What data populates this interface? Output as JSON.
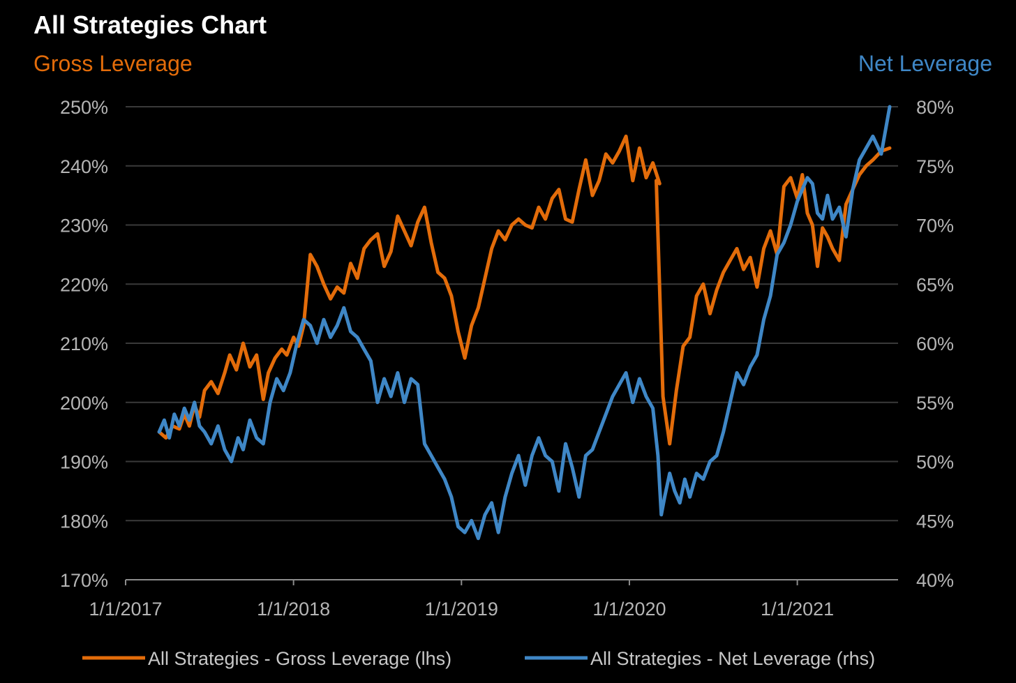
{
  "chart_data": {
    "type": "line",
    "title": "All Strategies Chart",
    "left_axis_title": "Gross Leverage",
    "right_axis_title": "Net Leverage",
    "x_ticks": [
      "1/1/2017",
      "1/1/2018",
      "1/1/2019",
      "1/1/2020",
      "1/1/2021"
    ],
    "x_range": [
      2017.0,
      2021.6
    ],
    "y_left": {
      "range": [
        170,
        250
      ],
      "ticks": [
        "170%",
        "180%",
        "190%",
        "200%",
        "210%",
        "220%",
        "230%",
        "240%",
        "250%"
      ]
    },
    "y_right": {
      "range": [
        40,
        80
      ],
      "ticks": [
        "40%",
        "45%",
        "50%",
        "55%",
        "60%",
        "65%",
        "70%",
        "75%",
        "80%"
      ]
    },
    "gridlines": true,
    "legend_position": "bottom",
    "colors": {
      "gross": "#e36c0a",
      "net": "#3f87c6",
      "background": "#000000",
      "grid": "#3a3a3a"
    },
    "series": [
      {
        "name": "All Strategies - Gross Leverage (lhs)",
        "axis": "left",
        "points": [
          [
            2017.2,
            195.0
          ],
          [
            2017.24,
            194.0
          ],
          [
            2017.28,
            196.0
          ],
          [
            2017.32,
            195.5
          ],
          [
            2017.35,
            198.0
          ],
          [
            2017.38,
            196.0
          ],
          [
            2017.41,
            199.5
          ],
          [
            2017.44,
            197.5
          ],
          [
            2017.47,
            202.0
          ],
          [
            2017.51,
            203.5
          ],
          [
            2017.55,
            201.5
          ],
          [
            2017.59,
            205.0
          ],
          [
            2017.62,
            208.0
          ],
          [
            2017.66,
            205.5
          ],
          [
            2017.7,
            210.0
          ],
          [
            2017.74,
            206.0
          ],
          [
            2017.78,
            208.0
          ],
          [
            2017.82,
            200.5
          ],
          [
            2017.85,
            205.0
          ],
          [
            2017.89,
            207.5
          ],
          [
            2017.93,
            209.0
          ],
          [
            2017.96,
            208.0
          ],
          [
            2018.0,
            211.0
          ],
          [
            2018.03,
            209.5
          ],
          [
            2018.06,
            213.0
          ],
          [
            2018.1,
            225.0
          ],
          [
            2018.14,
            223.0
          ],
          [
            2018.18,
            220.0
          ],
          [
            2018.22,
            217.5
          ],
          [
            2018.26,
            219.5
          ],
          [
            2018.3,
            218.5
          ],
          [
            2018.34,
            223.5
          ],
          [
            2018.38,
            221.0
          ],
          [
            2018.42,
            226.0
          ],
          [
            2018.46,
            227.5
          ],
          [
            2018.5,
            228.5
          ],
          [
            2018.54,
            223.0
          ],
          [
            2018.58,
            225.5
          ],
          [
            2018.62,
            231.5
          ],
          [
            2018.66,
            229.0
          ],
          [
            2018.7,
            226.5
          ],
          [
            2018.74,
            230.5
          ],
          [
            2018.78,
            233.0
          ],
          [
            2018.82,
            227.0
          ],
          [
            2018.86,
            222.0
          ],
          [
            2018.9,
            221.0
          ],
          [
            2018.94,
            218.0
          ],
          [
            2018.98,
            212.0
          ],
          [
            2019.02,
            207.5
          ],
          [
            2019.06,
            213.0
          ],
          [
            2019.1,
            216.0
          ],
          [
            2019.14,
            221.0
          ],
          [
            2019.18,
            226.0
          ],
          [
            2019.22,
            229.0
          ],
          [
            2019.26,
            227.5
          ],
          [
            2019.3,
            230.0
          ],
          [
            2019.34,
            231.0
          ],
          [
            2019.38,
            230.0
          ],
          [
            2019.42,
            229.5
          ],
          [
            2019.46,
            233.0
          ],
          [
            2019.5,
            231.0
          ],
          [
            2019.54,
            234.5
          ],
          [
            2019.58,
            236.0
          ],
          [
            2019.62,
            231.0
          ],
          [
            2019.66,
            230.5
          ],
          [
            2019.7,
            236.0
          ],
          [
            2019.74,
            241.0
          ],
          [
            2019.78,
            235.0
          ],
          [
            2019.82,
            237.5
          ],
          [
            2019.86,
            242.0
          ],
          [
            2019.9,
            240.5
          ],
          [
            2019.94,
            242.5
          ],
          [
            2019.98,
            245.0
          ],
          [
            2020.02,
            237.5
          ],
          [
            2020.06,
            243.0
          ],
          [
            2020.1,
            238.0
          ],
          [
            2020.14,
            240.5
          ],
          [
            2020.18,
            237.0
          ],
          [
            2020.16,
            237.5
          ],
          [
            2020.2,
            201.0
          ],
          [
            2020.24,
            193.0
          ],
          [
            2020.28,
            202.0
          ],
          [
            2020.32,
            209.5
          ],
          [
            2020.36,
            211.0
          ],
          [
            2020.4,
            218.0
          ],
          [
            2020.44,
            220.0
          ],
          [
            2020.48,
            215.0
          ],
          [
            2020.52,
            219.0
          ],
          [
            2020.56,
            222.0
          ],
          [
            2020.6,
            224.0
          ],
          [
            2020.64,
            226.0
          ],
          [
            2020.68,
            222.5
          ],
          [
            2020.72,
            224.5
          ],
          [
            2020.76,
            219.5
          ],
          [
            2020.8,
            226.0
          ],
          [
            2020.84,
            229.0
          ],
          [
            2020.88,
            225.0
          ],
          [
            2020.92,
            236.5
          ],
          [
            2020.96,
            238.0
          ],
          [
            2021.0,
            234.5
          ],
          [
            2021.03,
            238.5
          ],
          [
            2021.06,
            232.0
          ],
          [
            2021.09,
            230.0
          ],
          [
            2021.12,
            223.0
          ],
          [
            2021.15,
            229.5
          ],
          [
            2021.18,
            228.0
          ],
          [
            2021.21,
            226.0
          ],
          [
            2021.25,
            224.0
          ],
          [
            2021.29,
            233.5
          ],
          [
            2021.33,
            236.0
          ],
          [
            2021.37,
            238.5
          ],
          [
            2021.41,
            240.0
          ],
          [
            2021.45,
            241.0
          ],
          [
            2021.5,
            242.5
          ],
          [
            2021.55,
            243.0
          ]
        ]
      },
      {
        "name": "All Strategies - Net Leverage (rhs)",
        "axis": "right",
        "points": [
          [
            2017.2,
            52.5
          ],
          [
            2017.23,
            53.5
          ],
          [
            2017.26,
            52.0
          ],
          [
            2017.29,
            54.0
          ],
          [
            2017.32,
            53.0
          ],
          [
            2017.35,
            54.5
          ],
          [
            2017.38,
            53.5
          ],
          [
            2017.41,
            55.0
          ],
          [
            2017.44,
            53.0
          ],
          [
            2017.47,
            52.5
          ],
          [
            2017.51,
            51.5
          ],
          [
            2017.55,
            53.0
          ],
          [
            2017.59,
            51.0
          ],
          [
            2017.63,
            50.0
          ],
          [
            2017.67,
            52.0
          ],
          [
            2017.7,
            51.0
          ],
          [
            2017.74,
            53.5
          ],
          [
            2017.78,
            52.0
          ],
          [
            2017.82,
            51.5
          ],
          [
            2017.86,
            55.0
          ],
          [
            2017.9,
            57.0
          ],
          [
            2017.94,
            56.0
          ],
          [
            2017.98,
            57.5
          ],
          [
            2018.02,
            60.0
          ],
          [
            2018.06,
            62.0
          ],
          [
            2018.1,
            61.5
          ],
          [
            2018.14,
            60.0
          ],
          [
            2018.18,
            62.0
          ],
          [
            2018.22,
            60.5
          ],
          [
            2018.26,
            61.5
          ],
          [
            2018.3,
            63.0
          ],
          [
            2018.34,
            61.0
          ],
          [
            2018.38,
            60.5
          ],
          [
            2018.42,
            59.5
          ],
          [
            2018.46,
            58.5
          ],
          [
            2018.5,
            55.0
          ],
          [
            2018.54,
            57.0
          ],
          [
            2018.58,
            55.5
          ],
          [
            2018.62,
            57.5
          ],
          [
            2018.66,
            55.0
          ],
          [
            2018.7,
            57.0
          ],
          [
            2018.74,
            56.5
          ],
          [
            2018.78,
            51.5
          ],
          [
            2018.82,
            50.5
          ],
          [
            2018.86,
            49.5
          ],
          [
            2018.9,
            48.5
          ],
          [
            2018.94,
            47.0
          ],
          [
            2018.98,
            44.5
          ],
          [
            2019.02,
            44.0
          ],
          [
            2019.06,
            45.0
          ],
          [
            2019.1,
            43.5
          ],
          [
            2019.14,
            45.5
          ],
          [
            2019.18,
            46.5
          ],
          [
            2019.22,
            44.0
          ],
          [
            2019.26,
            47.0
          ],
          [
            2019.3,
            49.0
          ],
          [
            2019.34,
            50.5
          ],
          [
            2019.38,
            48.0
          ],
          [
            2019.42,
            50.5
          ],
          [
            2019.46,
            52.0
          ],
          [
            2019.5,
            50.5
          ],
          [
            2019.54,
            50.0
          ],
          [
            2019.58,
            47.5
          ],
          [
            2019.62,
            51.5
          ],
          [
            2019.66,
            49.5
          ],
          [
            2019.7,
            47.0
          ],
          [
            2019.74,
            50.5
          ],
          [
            2019.78,
            51.0
          ],
          [
            2019.82,
            52.5
          ],
          [
            2019.86,
            54.0
          ],
          [
            2019.9,
            55.5
          ],
          [
            2019.94,
            56.5
          ],
          [
            2019.98,
            57.5
          ],
          [
            2020.02,
            55.0
          ],
          [
            2020.06,
            57.0
          ],
          [
            2020.1,
            55.5
          ],
          [
            2020.14,
            54.5
          ],
          [
            2020.17,
            50.5
          ],
          [
            2020.19,
            45.5
          ],
          [
            2020.21,
            47.0
          ],
          [
            2020.24,
            49.0
          ],
          [
            2020.27,
            47.5
          ],
          [
            2020.3,
            46.5
          ],
          [
            2020.33,
            48.5
          ],
          [
            2020.36,
            47.0
          ],
          [
            2020.4,
            49.0
          ],
          [
            2020.44,
            48.5
          ],
          [
            2020.48,
            50.0
          ],
          [
            2020.52,
            50.5
          ],
          [
            2020.56,
            52.5
          ],
          [
            2020.6,
            55.0
          ],
          [
            2020.64,
            57.5
          ],
          [
            2020.68,
            56.5
          ],
          [
            2020.72,
            58.0
          ],
          [
            2020.76,
            59.0
          ],
          [
            2020.8,
            62.0
          ],
          [
            2020.84,
            64.0
          ],
          [
            2020.88,
            67.5
          ],
          [
            2020.92,
            68.5
          ],
          [
            2020.96,
            70.0
          ],
          [
            2021.0,
            72.0
          ],
          [
            2021.03,
            73.0
          ],
          [
            2021.06,
            74.0
          ],
          [
            2021.09,
            73.5
          ],
          [
            2021.12,
            71.0
          ],
          [
            2021.15,
            70.5
          ],
          [
            2021.18,
            72.5
          ],
          [
            2021.21,
            70.5
          ],
          [
            2021.25,
            71.5
          ],
          [
            2021.29,
            69.0
          ],
          [
            2021.33,
            73.0
          ],
          [
            2021.37,
            75.5
          ],
          [
            2021.41,
            76.5
          ],
          [
            2021.45,
            77.5
          ],
          [
            2021.5,
            76.0
          ],
          [
            2021.55,
            80.0
          ]
        ]
      }
    ]
  }
}
